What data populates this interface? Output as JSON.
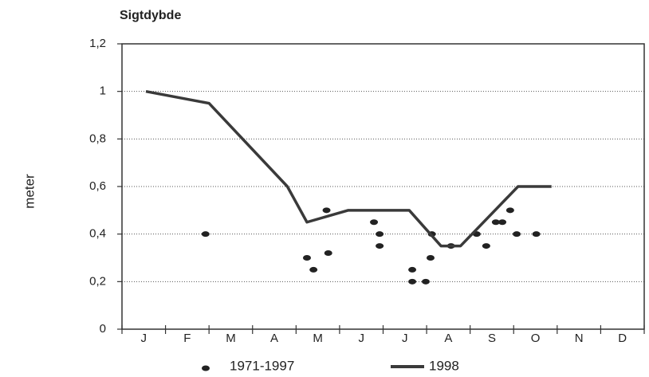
{
  "chart_data": {
    "type": "line_scatter",
    "title": "Sigtdybde",
    "y_label": "meter",
    "categories": [
      "J",
      "F",
      "M",
      "A",
      "M",
      "J",
      "J",
      "A",
      "S",
      "O",
      "N",
      "D"
    ],
    "xlim": [
      0,
      12
    ],
    "ylim": [
      0,
      1.2
    ],
    "yticks": [
      0,
      {
        "value": 0.2,
        "label": "0,2"
      },
      {
        "value": 0.4,
        "label": "0,4"
      },
      {
        "value": 0.6,
        "label": "0,6"
      },
      {
        "value": 0.8,
        "label": "0,8"
      },
      1,
      {
        "value": 1.2,
        "label": "1,2"
      }
    ],
    "grid": true,
    "series": [
      {
        "name": "1971-1997",
        "kind": "scatter",
        "color": "#222222",
        "x": [
          1.92,
          4.25,
          4.4,
          4.7,
          4.74,
          5.79,
          5.92,
          5.92,
          6.67,
          6.67,
          6.98,
          7.09,
          7.12,
          7.56,
          8.15,
          8.37,
          8.59,
          8.74,
          8.92,
          9.07,
          9.52
        ],
        "values": [
          0.4,
          0.3,
          0.25,
          0.5,
          0.32,
          0.45,
          0.4,
          0.35,
          0.25,
          0.2,
          0.2,
          0.3,
          0.4,
          0.35,
          0.4,
          0.35,
          0.45,
          0.45,
          0.5,
          0.4,
          0.4
        ]
      },
      {
        "name": "1998",
        "kind": "line",
        "color": "#3a3a3a",
        "x": [
          0.55,
          2.0,
          3.8,
          4.25,
          5.2,
          6.6,
          7.33,
          7.78,
          9.1,
          9.87
        ],
        "values": [
          1.0,
          0.95,
          0.6,
          0.45,
          0.5,
          0.5,
          0.35,
          0.35,
          0.6,
          0.6
        ]
      }
    ]
  }
}
